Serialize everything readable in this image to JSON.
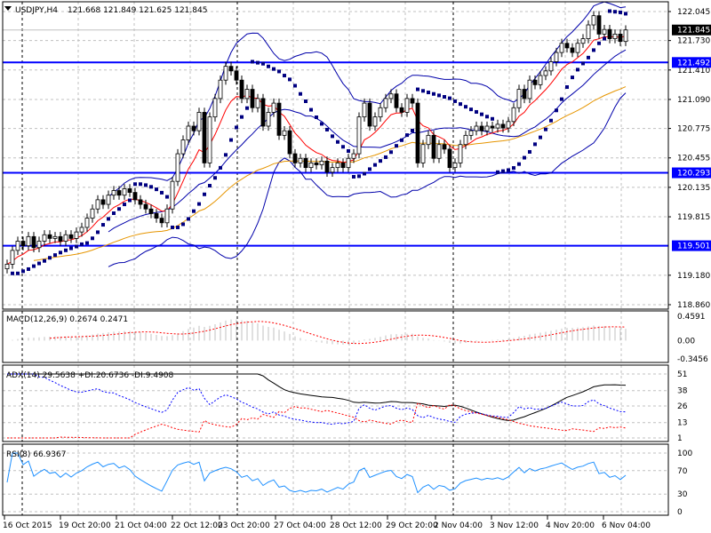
{
  "header": {
    "symbol": "USDJPY,H4",
    "ohlc": "121.668 121.849 121.625 121.845",
    "menu_icon": "triangle-down-icon"
  },
  "colors": {
    "bull_body": "#ffffff",
    "bear_body": "#000000",
    "level_line": "#0000ff",
    "bands": "#0000aa",
    "fast_ma": "#ff0000",
    "slow_ma": "#e69500",
    "sar": "#000080",
    "adx": "#000000",
    "plus_di": "#0000ff",
    "minus_di": "#ff0000",
    "rsi": "#1e90ff",
    "grid": "#c0c0c0"
  },
  "chart_data": {
    "type": "candlestick",
    "symbol": "USDJPY",
    "timeframe": "H4",
    "ylim": [
      118.86,
      122.045
    ],
    "price_ticks": [
      "122.045",
      "121.730",
      "121.410",
      "121.090",
      "120.775",
      "120.455",
      "120.135",
      "119.815",
      "119.180",
      "118.860"
    ],
    "price_tick_values": [
      122.045,
      121.73,
      121.41,
      121.09,
      120.775,
      120.455,
      120.135,
      119.815,
      119.18,
      118.86
    ],
    "levels": [
      {
        "label": "121.492",
        "value": 121.492
      },
      {
        "label": "120.293",
        "value": 120.293
      },
      {
        "label": "119.501",
        "value": 119.501
      }
    ],
    "current_price": {
      "label": "121.845",
      "value": 121.845
    },
    "closes": [
      119.3,
      119.45,
      119.55,
      119.5,
      119.6,
      119.48,
      119.55,
      119.62,
      119.58,
      119.6,
      119.55,
      119.62,
      119.58,
      119.65,
      119.7,
      119.8,
      119.9,
      120.0,
      119.95,
      120.05,
      120.1,
      120.05,
      120.12,
      120.08,
      120.0,
      119.95,
      119.9,
      119.85,
      119.8,
      119.75,
      119.9,
      120.2,
      120.5,
      120.65,
      120.8,
      120.75,
      120.95,
      120.4,
      120.9,
      121.1,
      121.3,
      121.45,
      121.4,
      121.3,
      121.1,
      121.2,
      121.0,
      121.1,
      120.8,
      120.95,
      121.05,
      120.7,
      120.75,
      120.5,
      120.4,
      120.45,
      120.35,
      120.4,
      120.38,
      120.42,
      120.3,
      120.35,
      120.4,
      120.35,
      120.45,
      120.5,
      120.9,
      121.05,
      120.8,
      120.9,
      121.0,
      121.1,
      121.15,
      121.0,
      120.95,
      121.1,
      121.05,
      120.4,
      120.6,
      120.7,
      120.45,
      120.6,
      120.55,
      120.35,
      120.4,
      120.6,
      120.7,
      120.75,
      120.8,
      120.75,
      120.8,
      120.78,
      120.82,
      120.78,
      120.85,
      121.0,
      121.2,
      121.1,
      121.3,
      121.25,
      121.35,
      121.4,
      121.5,
      121.6,
      121.7,
      121.65,
      121.6,
      121.7,
      121.75,
      121.9,
      122.0,
      121.8,
      121.85,
      121.75,
      121.8,
      121.72,
      121.845
    ],
    "time_labels": [
      "16 Oct 2015",
      "19 Oct 20:00",
      "21 Oct 04:00",
      "22 Oct 12:00",
      "23 Oct 20:00",
      "27 Oct 04:00",
      "28 Oct 12:00",
      "29 Oct 20:00",
      "2 Nov 04:00",
      "3 Nov 12:00",
      "4 Nov 20:00",
      "6 Nov 04:00"
    ],
    "indicators": {
      "macd": {
        "label": "MACD(12,26,9) 0.2674 0.2471",
        "ticks": [
          "0.4591",
          "0.00",
          "-0.3456"
        ],
        "range": [
          -0.3456,
          0.4591
        ]
      },
      "adx": {
        "label": "ADX(14) 29.5638 +DI:20.6736 -DI:9.4908",
        "ticks": [
          "51",
          "38",
          "26",
          "13",
          "1"
        ],
        "range": [
          1,
          51
        ]
      },
      "rsi": {
        "label": "RSI(8) 66.9367",
        "ticks": [
          "100",
          "70",
          "30",
          "0"
        ],
        "range": [
          0,
          100
        ]
      }
    }
  }
}
